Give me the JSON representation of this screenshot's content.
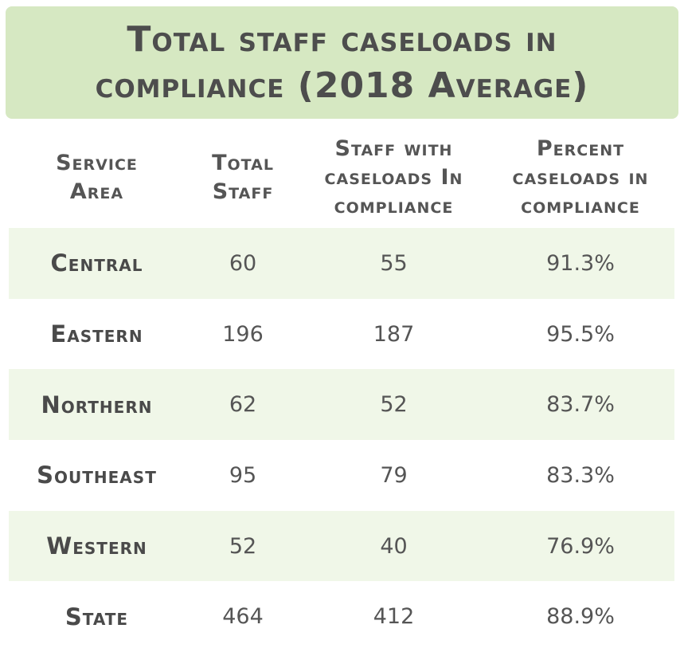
{
  "colors": {
    "title_background": "#d6e8c2",
    "row_shade": "#f0f7e8",
    "text": "#4f4f4f"
  },
  "chart_data": {
    "type": "table",
    "title": "Total staff caseloads in compliance (2018 Average)",
    "columns": [
      "Service\nArea",
      "Total\nStaff",
      "Staff with\ncaseloads In\ncompliance",
      "Percent\ncaseloads in\ncompliance"
    ],
    "rows": [
      {
        "area": "Central",
        "total_staff": "60",
        "in_compliance": "55",
        "percent": "91.3%"
      },
      {
        "area": "Eastern",
        "total_staff": "196",
        "in_compliance": "187",
        "percent": "95.5%"
      },
      {
        "area": "Northern",
        "total_staff": "62",
        "in_compliance": "52",
        "percent": "83.7%"
      },
      {
        "area": "Southeast",
        "total_staff": "95",
        "in_compliance": "79",
        "percent": "83.3%"
      },
      {
        "area": "Western",
        "total_staff": "52",
        "in_compliance": "40",
        "percent": "76.9%"
      },
      {
        "area": "State",
        "total_staff": "464",
        "in_compliance": "412",
        "percent": "88.9%"
      }
    ]
  }
}
